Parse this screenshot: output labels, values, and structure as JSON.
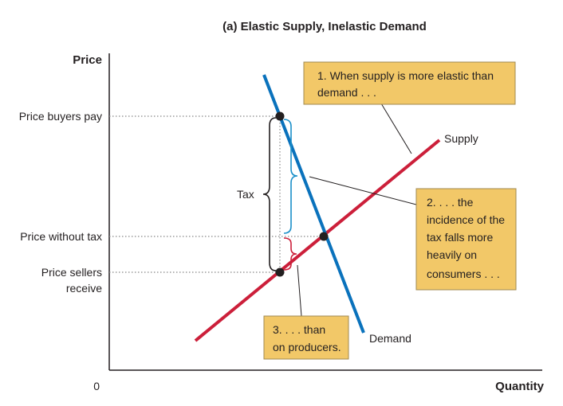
{
  "title": "(a) Elastic Supply, Inelastic Demand",
  "axes": {
    "y_label": "Price",
    "x_label": "Quantity",
    "origin_label": "0"
  },
  "price_levels": {
    "buyers_pay": "Price buyers pay",
    "without_tax": "Price without tax",
    "sellers_receive_line1": "Price sellers",
    "sellers_receive_line2": "receive"
  },
  "curves": {
    "supply": "Supply",
    "demand": "Demand",
    "supply_color": "#cc1f3a",
    "demand_color": "#0a72bc"
  },
  "tax_label": "Tax",
  "brace_colors": {
    "tax": "#231f20",
    "consumer_share": "#1a8fc9",
    "producer_share": "#cc1f3a"
  },
  "notes": {
    "note1": [
      "1. When supply is more elastic than",
      "demand . . ."
    ],
    "note2": [
      "2. . . . the",
      "incidence of the",
      "tax falls more",
      "heavily on",
      "consumers . . ."
    ],
    "note3": [
      "3. . . . than",
      "on producers."
    ]
  },
  "colors": {
    "note_fill": "#f2c868",
    "point": "#231f20",
    "dotted_guides": "#888888"
  }
}
